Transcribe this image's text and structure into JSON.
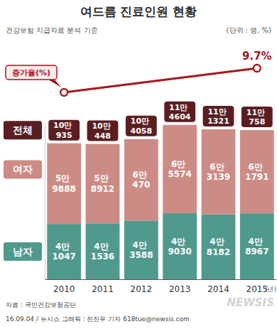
{
  "chart_data": {
    "type": "bar",
    "stacked": true,
    "data_labels": true,
    "tick_labels": "x",
    "title": "여드름 진료인원 현황",
    "subtitle": "건강보험 지급자료 분석 기준",
    "unit": "(단위 : 명, %)",
    "categories": [
      "2010",
      "2011",
      "2012",
      "2013",
      "2014",
      "2015"
    ],
    "xlabel": "(년)",
    "ylim": [
      0,
      115000
    ],
    "yticks": [
      0
    ],
    "series": [
      {
        "name": "남자",
        "color": "#4f998d",
        "values": [
          41047,
          41536,
          43588,
          49030,
          48182,
          48967
        ],
        "value_labels": [
          "4만 1047",
          "4만 1536",
          "4만 3588",
          "4만 9030",
          "4만 8182",
          "4만 8967"
        ]
      },
      {
        "name": "여자",
        "color": "#cd8b86",
        "values": [
          59888,
          58912,
          60470,
          65574,
          63139,
          61791
        ],
        "value_labels": [
          "5만 9888",
          "5만 8912",
          "6만 470",
          "6만 5574",
          "6만 3139",
          "6만 1791"
        ]
      }
    ],
    "totals": {
      "name": "전체",
      "color": "#5a1e21",
      "values": [
        100935,
        100448,
        104058,
        114604,
        111321,
        110758
      ],
      "value_labels": [
        "10만 935",
        "10만 448",
        "10만 4058",
        "11만 4604",
        "11만 1321",
        "11만 758"
      ]
    },
    "growth": {
      "name": "증가율(%)",
      "type": "line",
      "axis": "y2",
      "color": "#a3191f",
      "marker": "circle",
      "x": [
        "2010",
        "2015"
      ],
      "values": [
        0,
        9.7
      ],
      "value_labels": [
        null,
        "9.7%"
      ]
    },
    "y2lim": [
      0,
      10
    ],
    "source": "자료 : 국민건강보험공단",
    "credit": "16.09.04 / 뉴시스 그래픽 : 전진우 기자 618tue@newsis.com",
    "watermark": "NEWSIS"
  }
}
